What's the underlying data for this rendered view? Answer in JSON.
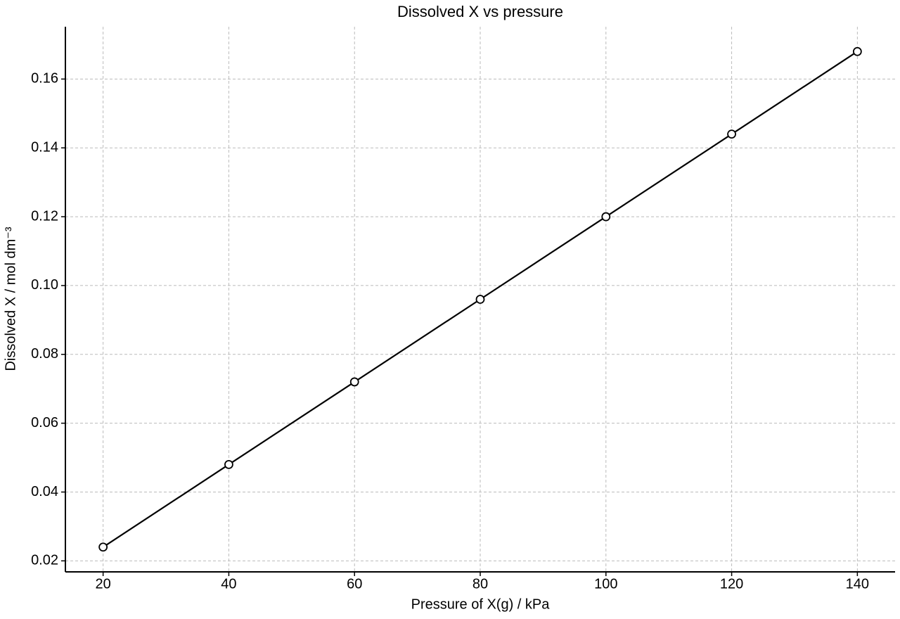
{
  "chart_data": {
    "type": "line",
    "title": "Dissolved X vs pressure",
    "xlabel": "Pressure of X(g) / kPa",
    "ylabel": "Dissolved X / mol dm⁻³",
    "x": [
      20,
      40,
      60,
      80,
      100,
      120,
      140
    ],
    "values": [
      0.024,
      0.048,
      0.072,
      0.096,
      0.12,
      0.144,
      0.168
    ],
    "color": "#000000",
    "xlim": [
      14,
      146
    ],
    "xticks": [
      20,
      40,
      60,
      80,
      100,
      120,
      140
    ],
    "ylim": [
      0.0168,
      0.1752
    ],
    "yticks": [
      0.02,
      0.04,
      0.06,
      0.08,
      {
        "value": 0.1,
        "label": "0.10"
      },
      0.12,
      0.14,
      0.16
    ],
    "grid": true
  }
}
